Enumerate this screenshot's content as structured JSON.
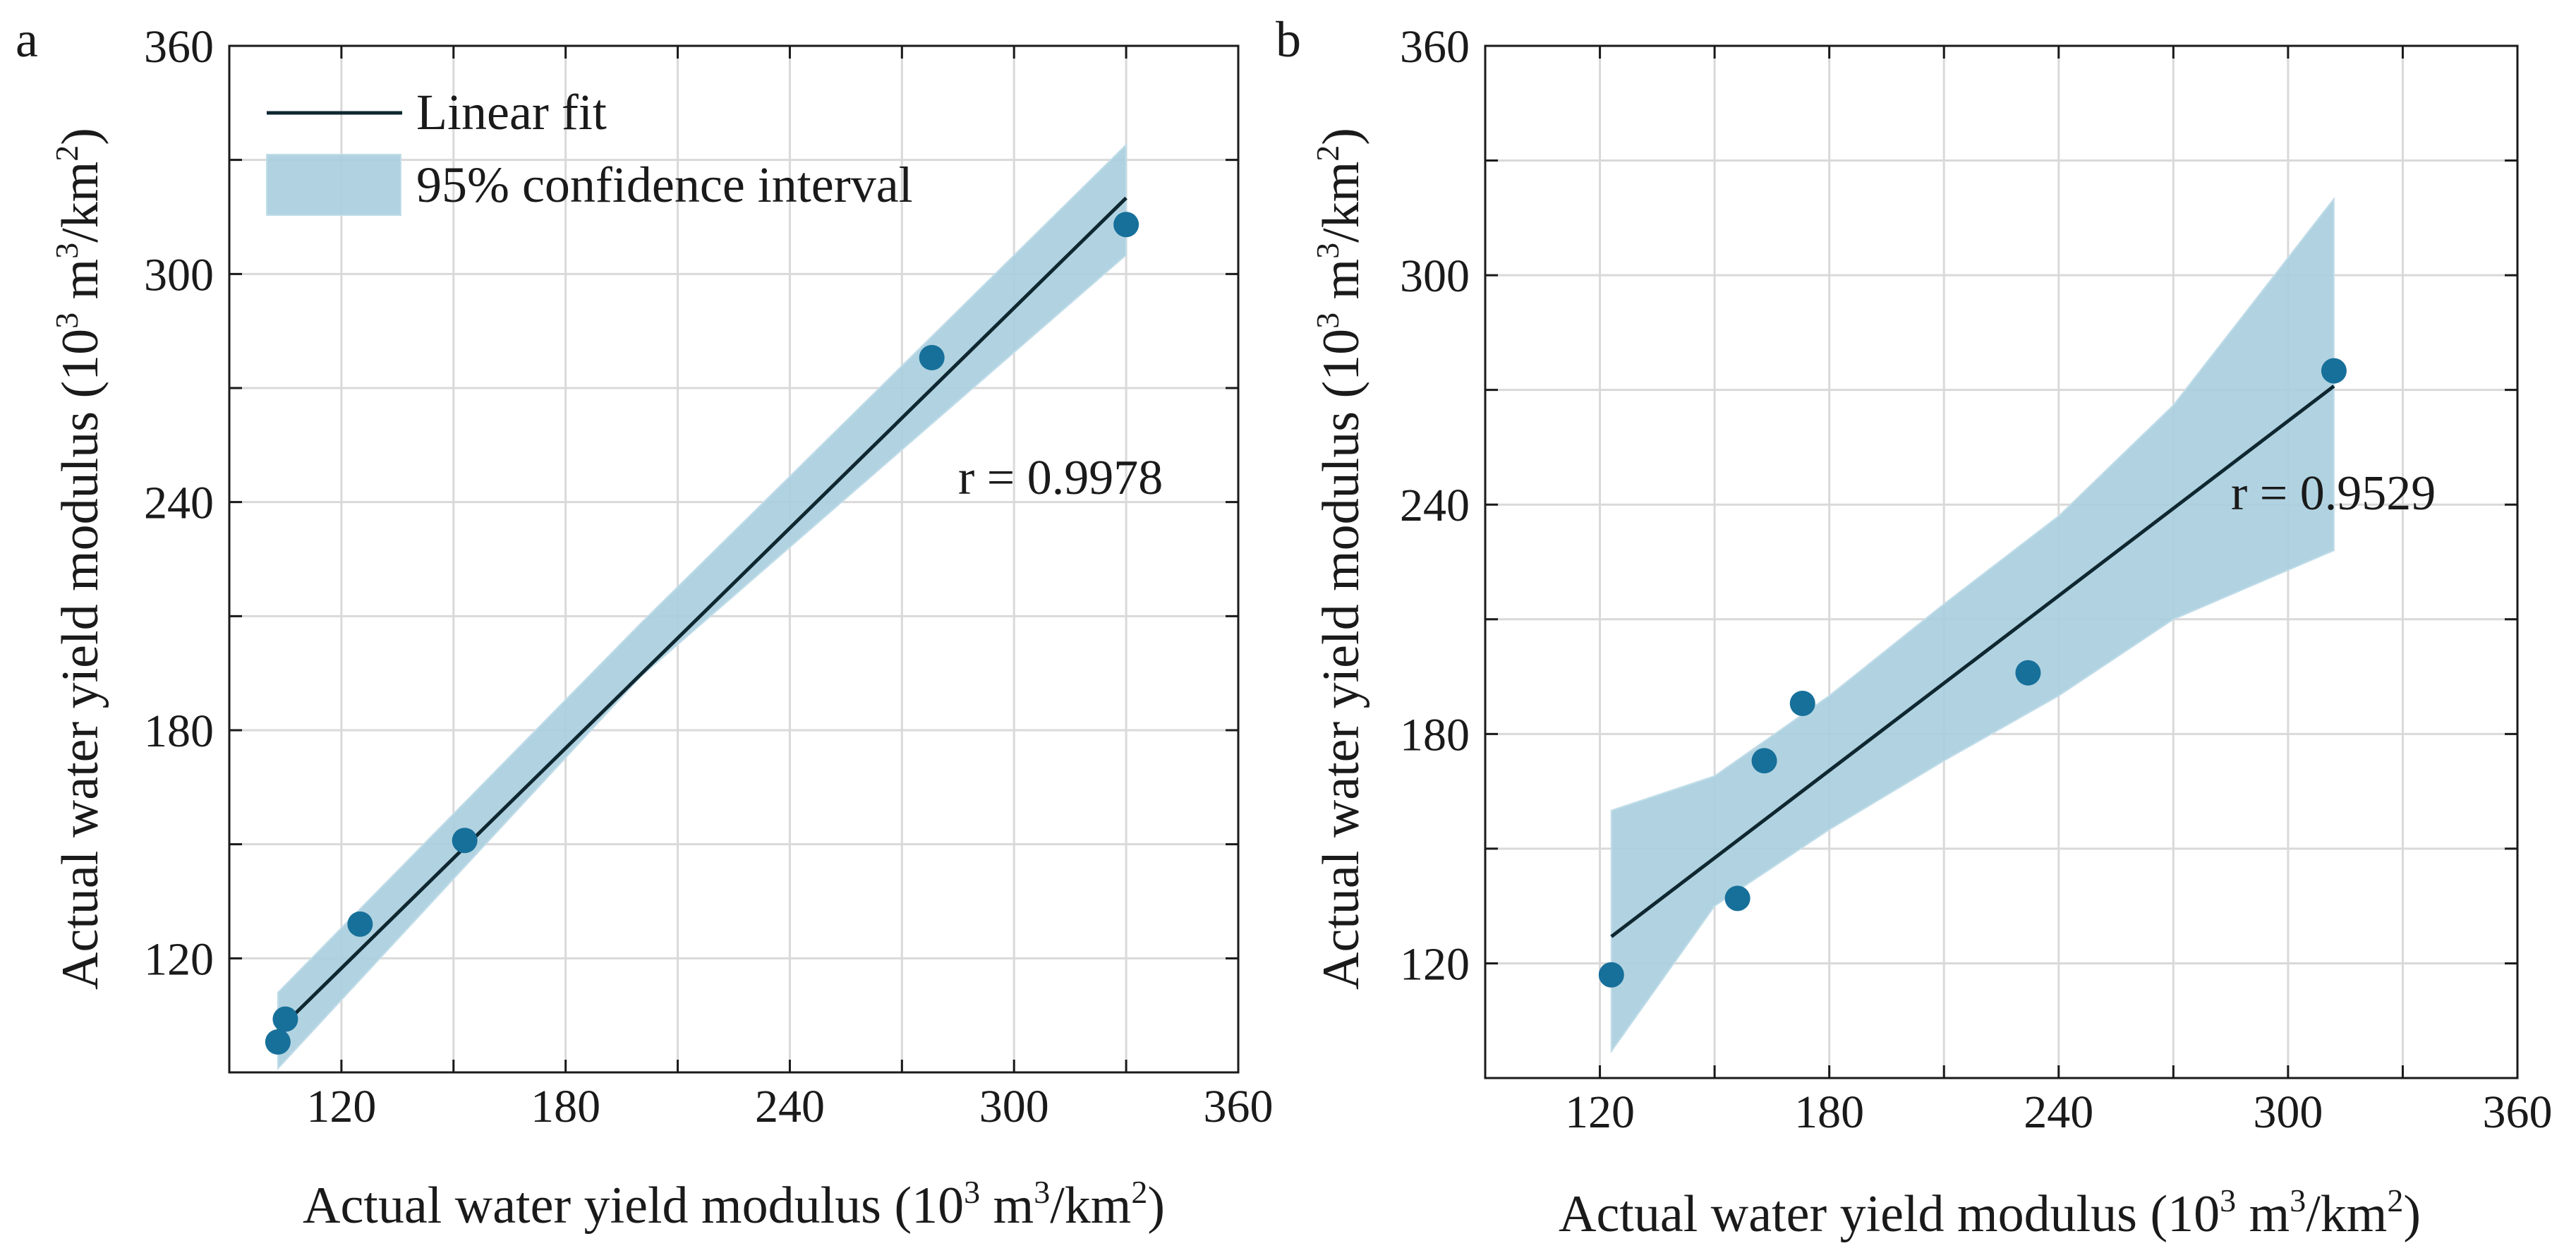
{
  "chart_data": [
    {
      "type": "scatter",
      "panel": "a",
      "title": "",
      "xlabel": "Actual water yield modulus (10^3 m^3/km^2)",
      "ylabel": "Actual water yield modulus (10^3 m^3/km^2)",
      "xlim": [
        90,
        360
      ],
      "ylim": [
        90,
        360
      ],
      "xticks": [
        120,
        180,
        240,
        300,
        360
      ],
      "yticks": [
        120,
        180,
        240,
        300,
        360
      ],
      "grid": true,
      "legend_position": "top-left",
      "legend": [
        {
          "label": "Linear fit",
          "kind": "line"
        },
        {
          "label": "95% confidence interval",
          "kind": "band"
        }
      ],
      "annotation": "r = 0.9978",
      "points": [
        {
          "x": 103,
          "y": 98
        },
        {
          "x": 105,
          "y": 104
        },
        {
          "x": 125,
          "y": 129
        },
        {
          "x": 153,
          "y": 151
        },
        {
          "x": 278,
          "y": 278
        },
        {
          "x": 330,
          "y": 313
        }
      ],
      "fit": {
        "x": [
          103,
          330
        ],
        "y": [
          101,
          320
        ]
      },
      "ci_band": {
        "x": [
          103,
          200,
          330
        ],
        "lower": [
          91,
          194,
          305
        ],
        "upper": [
          111,
          208,
          334
        ]
      }
    },
    {
      "type": "scatter",
      "panel": "b",
      "title": "",
      "xlabel": "Actual water yield modulus (10^3 m^3/km^2)",
      "ylabel": "Actual water yield modulus (10^3 m^3/km^2)",
      "xlim": [
        90,
        360
      ],
      "ylim": [
        90,
        360
      ],
      "xticks": [
        120,
        180,
        240,
        300,
        360
      ],
      "yticks": [
        120,
        180,
        240,
        300,
        360
      ],
      "grid": true,
      "annotation": "r = 0.9529",
      "points": [
        {
          "x": 123,
          "y": 117
        },
        {
          "x": 156,
          "y": 137
        },
        {
          "x": 163,
          "y": 173
        },
        {
          "x": 173,
          "y": 188
        },
        {
          "x": 232,
          "y": 196
        },
        {
          "x": 312,
          "y": 275
        }
      ],
      "fit": {
        "x": [
          123,
          312
        ],
        "y": [
          127,
          271
        ]
      },
      "ci_band": {
        "x": [
          123,
          150,
          180,
          210,
          240,
          270,
          312
        ],
        "lower": [
          97,
          135,
          155,
          173,
          190,
          210,
          228
        ],
        "upper": [
          160,
          169,
          190,
          214,
          237,
          266,
          320
        ]
      }
    }
  ],
  "labels": {
    "axis_title_main": "Actual water yield modulus (10",
    "exp_3": "3",
    "axis_title_unit": " m",
    "axis_title_slash": "/km",
    "exp_2": "2",
    "axis_title_close": ")",
    "panel_a": "a",
    "panel_b": "b"
  },
  "colors": {
    "point": "#17709a",
    "band": "#a9cede",
    "fit_line": "#0f2730",
    "grid": "#d9d9d9"
  }
}
